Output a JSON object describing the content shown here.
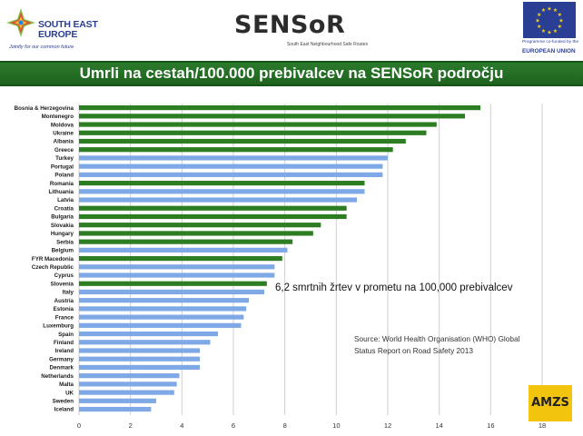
{
  "header": {
    "see_logo_text": "SOUTH EAST EUROPE",
    "see_logo_line1": "SOUTH EAST",
    "see_logo_line2": "EUROPE",
    "see_tagline": "Jointly for our common future",
    "sensor_logo": "SENSoR",
    "sensor_sub": "South East Neighbourhood Safe Routes",
    "eu_caption_1": "Programme co-funded by the",
    "eu_caption_2": "EUROPEAN UNION"
  },
  "title": "Umrli na cestah/100.000 prebivalcev na SENSoR področju",
  "amzs_logo": "AMZS",
  "colors": {
    "title_bar": "#1f6a20",
    "sensor_bar": "#2d7d22",
    "other_bar": "#7fa8e6",
    "eu_blue": "#2a3f94",
    "eu_star": "#f7d117",
    "amzs_yellow": "#f2c40e"
  },
  "chart_data": {
    "type": "bar",
    "orientation": "horizontal",
    "categories": [
      "Bosnia & Herzegovina",
      "Montenegro",
      "Moldova",
      "Ukraine",
      "Albania",
      "Greece",
      "Turkey",
      "Portugal",
      "Poland",
      "Romania",
      "Lithuania",
      "Latvia",
      "Croatia",
      "Bulgaria",
      "Slovakia",
      "Hungary",
      "Serbia",
      "Belgium",
      "FYR Macedonia",
      "Czech Republic",
      "Cyprus",
      "Slovenia",
      "Italy",
      "Austria",
      "Estonia",
      "France",
      "Luxemburg",
      "Spain",
      "Finland",
      "Ireland",
      "Germany",
      "Denmark",
      "Netherlands",
      "Malta",
      "UK",
      "Sweden",
      "Iceland"
    ],
    "values": [
      15.6,
      15.0,
      13.9,
      13.5,
      12.7,
      12.2,
      12.0,
      11.8,
      11.8,
      11.1,
      11.1,
      10.8,
      10.4,
      10.4,
      9.4,
      9.1,
      8.3,
      8.1,
      7.9,
      7.6,
      7.6,
      7.3,
      7.2,
      6.6,
      6.5,
      6.4,
      6.3,
      5.4,
      5.1,
      4.7,
      4.7,
      4.7,
      3.9,
      3.8,
      3.7,
      3.0,
      2.8
    ],
    "sensor_region": [
      true,
      true,
      true,
      true,
      true,
      true,
      false,
      false,
      false,
      true,
      false,
      false,
      true,
      true,
      true,
      true,
      true,
      false,
      true,
      false,
      false,
      true,
      false,
      false,
      false,
      false,
      false,
      false,
      false,
      false,
      false,
      false,
      false,
      false,
      false,
      false,
      false
    ],
    "xlim": [
      0,
      18
    ],
    "xticks": [
      0,
      2,
      4,
      6,
      8,
      10,
      12,
      14,
      16,
      18
    ],
    "grid": "vertical",
    "annotation": "6,2 smrtnih žrtev v prometu na  100,000 prebivalcev",
    "source_line1": "Source: World Health Organisation (WHO) Global",
    "source_line2": "Status Report on Road Safety 2013"
  }
}
